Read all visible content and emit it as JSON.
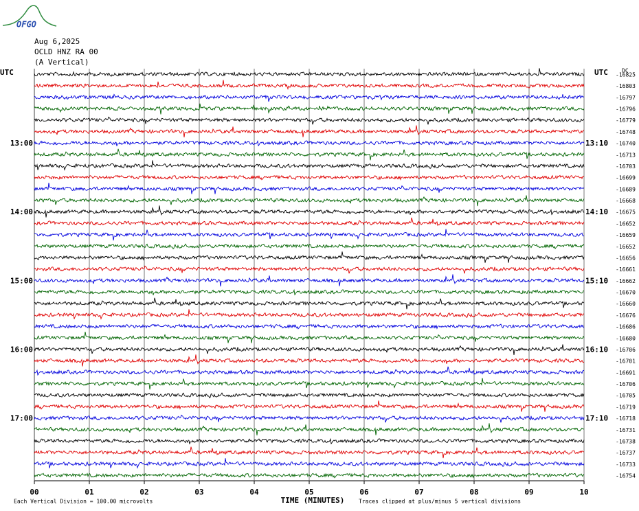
{
  "logo": "OFGO",
  "chart_data": {
    "type": "helicorder",
    "date": "Aug 6,2025",
    "station": "OCLD HNZ RA 00",
    "component": "(A Vertical)",
    "left_axis_label": "UTC",
    "right_axis_label": "UTC",
    "dc_label": "DC",
    "xlabel": "TIME (MINUTES)",
    "scale_note": "Each Vertical Division =  100.00 microvolts",
    "clip_note": "Traces clipped at plus/minus 5 vertical divisions",
    "xlim": [
      0,
      10
    ],
    "xticks": [
      {
        "value": 0,
        "label": "00"
      },
      {
        "value": 1,
        "label": "01"
      },
      {
        "value": 2,
        "label": "02"
      },
      {
        "value": 3,
        "label": "03"
      },
      {
        "value": 4,
        "label": "04"
      },
      {
        "value": 5,
        "label": "05"
      },
      {
        "value": 6,
        "label": "06"
      },
      {
        "value": 7,
        "label": "07"
      },
      {
        "value": 8,
        "label": "08"
      },
      {
        "value": 9,
        "label": "09"
      },
      {
        "value": 10,
        "label": "10"
      }
    ],
    "grid": true,
    "colors": [
      "#000000",
      "#e00000",
      "#0000dd",
      "#006400"
    ],
    "rows": [
      {
        "dc": -16825
      },
      {
        "dc": -16803
      },
      {
        "dc": -16797
      },
      {
        "dc": -16796
      },
      {
        "dc": -16779
      },
      {
        "dc": -16748
      },
      {
        "dc": -16740,
        "left": "13:00",
        "right": "13:10"
      },
      {
        "dc": -16713
      },
      {
        "dc": -16703
      },
      {
        "dc": -16699
      },
      {
        "dc": -16689
      },
      {
        "dc": -16668
      },
      {
        "dc": -16675,
        "left": "14:00",
        "right": "14:10"
      },
      {
        "dc": -16652
      },
      {
        "dc": -16659
      },
      {
        "dc": -16652
      },
      {
        "dc": -16656
      },
      {
        "dc": -16661
      },
      {
        "dc": -16662,
        "left": "15:00",
        "right": "15:10"
      },
      {
        "dc": -16670
      },
      {
        "dc": -16660
      },
      {
        "dc": -16676
      },
      {
        "dc": -16686
      },
      {
        "dc": -16680
      },
      {
        "dc": -16706,
        "left": "16:00",
        "right": "16:10"
      },
      {
        "dc": -16701
      },
      {
        "dc": -16691
      },
      {
        "dc": -16706
      },
      {
        "dc": -16705
      },
      {
        "dc": -16719
      },
      {
        "dc": -16718,
        "left": "17:00",
        "right": "17:10"
      },
      {
        "dc": -16731
      },
      {
        "dc": -16738
      },
      {
        "dc": -16737
      },
      {
        "dc": -16733
      },
      {
        "dc": -16754
      }
    ]
  }
}
